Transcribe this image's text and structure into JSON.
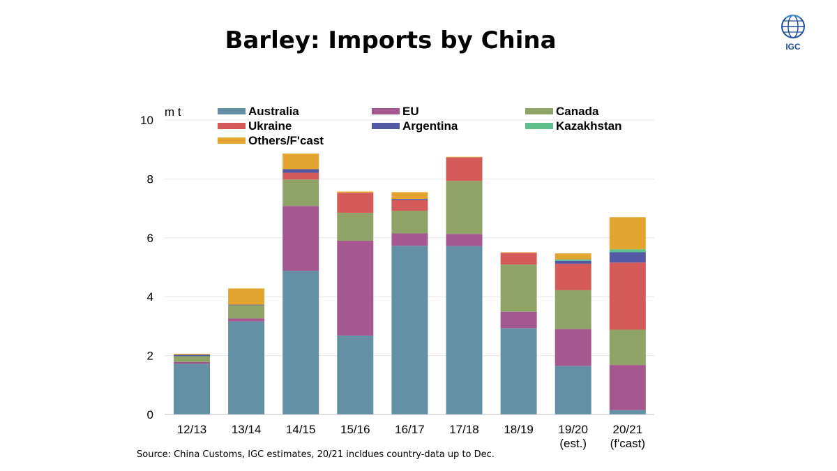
{
  "page": {
    "title": "Barley: Imports by China",
    "source": "Source: China Customs, IGC estimates, 20/21 incldues country-data up to Dec.",
    "logo_text": "IGC"
  },
  "chart_data": {
    "type": "bar",
    "stacked": true,
    "ylabel": "m t",
    "ylim": [
      0,
      10
    ],
    "yticks": [
      0,
      2,
      4,
      6,
      8,
      10
    ],
    "grid": true,
    "legend_position": "top",
    "categories": [
      [
        "12/13"
      ],
      [
        "13/14"
      ],
      [
        "14/15"
      ],
      [
        "15/16"
      ],
      [
        "16/17"
      ],
      [
        "17/18"
      ],
      [
        "18/19"
      ],
      [
        "19/20",
        "(est.)"
      ],
      [
        "20/21",
        "(f'cast)"
      ]
    ],
    "series": [
      {
        "name": "Australia",
        "color": "#6490a6",
        "values": [
          1.72,
          3.16,
          4.88,
          2.68,
          5.73,
          5.72,
          2.93,
          1.65,
          0.15
        ]
      },
      {
        "name": "EU",
        "color": "#a5578f",
        "values": [
          0.06,
          0.1,
          2.2,
          3.22,
          0.42,
          0.41,
          0.56,
          1.25,
          1.53
        ]
      },
      {
        "name": "Canada",
        "color": "#8fa466",
        "values": [
          0.2,
          0.45,
          0.9,
          0.95,
          0.77,
          1.8,
          1.6,
          1.32,
          1.2
        ]
      },
      {
        "name": "Ukraine",
        "color": "#d45b59",
        "values": [
          0.0,
          0.0,
          0.23,
          0.68,
          0.36,
          0.8,
          0.4,
          0.9,
          2.28
        ]
      },
      {
        "name": "Argentina",
        "color": "#5459a4",
        "values": [
          0.05,
          0.02,
          0.12,
          0.0,
          0.04,
          0.0,
          0.0,
          0.1,
          0.35
        ]
      },
      {
        "name": "Kazakhstan",
        "color": "#5fbf8c",
        "values": [
          0.0,
          0.0,
          0.0,
          0.0,
          0.0,
          0.0,
          0.0,
          0.05,
          0.1
        ]
      },
      {
        "name": "Others/F'cast",
        "color": "#e3a52f",
        "values": [
          0.03,
          0.55,
          0.53,
          0.04,
          0.23,
          0.02,
          0.02,
          0.2,
          1.09
        ]
      }
    ]
  }
}
